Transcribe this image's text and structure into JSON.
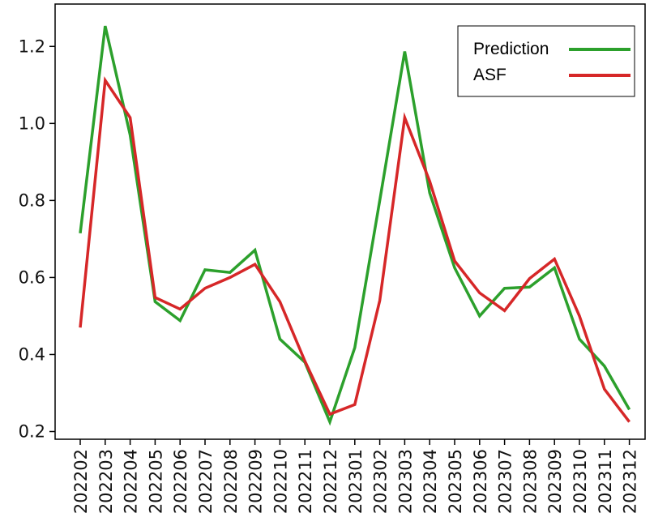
{
  "chart_data": {
    "type": "line",
    "title": "",
    "xlabel": "",
    "ylabel": "",
    "categories": [
      "202202",
      "202203",
      "202204",
      "202205",
      "202206",
      "202207",
      "202208",
      "202209",
      "202210",
      "202211",
      "202212",
      "202301",
      "202302",
      "202303",
      "202304",
      "202305",
      "202306",
      "202307",
      "202308",
      "202309",
      "202310",
      "202311",
      "202312"
    ],
    "ylim": [
      0.18,
      1.31
    ],
    "yticks": [
      0.2,
      0.4,
      0.6,
      0.8,
      1.0,
      1.2
    ],
    "ytick_labels": [
      "0.2",
      "0.4",
      "0.6",
      "0.8",
      "1.0",
      "1.2"
    ],
    "grid": false,
    "legend_position": "top-right",
    "series": [
      {
        "name": "Prediction",
        "color": "#2ca02c",
        "values": [
          0.715,
          1.253,
          0.97,
          0.537,
          0.488,
          0.62,
          0.613,
          0.671,
          0.44,
          0.38,
          0.225,
          0.418,
          0.8,
          1.187,
          0.82,
          0.625,
          0.5,
          0.572,
          0.575,
          0.625,
          0.44,
          0.37,
          0.257
        ]
      },
      {
        "name": "ASF",
        "color": "#d62728",
        "values": [
          0.47,
          1.112,
          1.015,
          0.548,
          0.518,
          0.572,
          0.6,
          0.634,
          0.537,
          0.383,
          0.245,
          0.27,
          0.54,
          1.015,
          0.85,
          0.643,
          0.56,
          0.514,
          0.597,
          0.648,
          0.5,
          0.31,
          0.225
        ]
      }
    ]
  }
}
